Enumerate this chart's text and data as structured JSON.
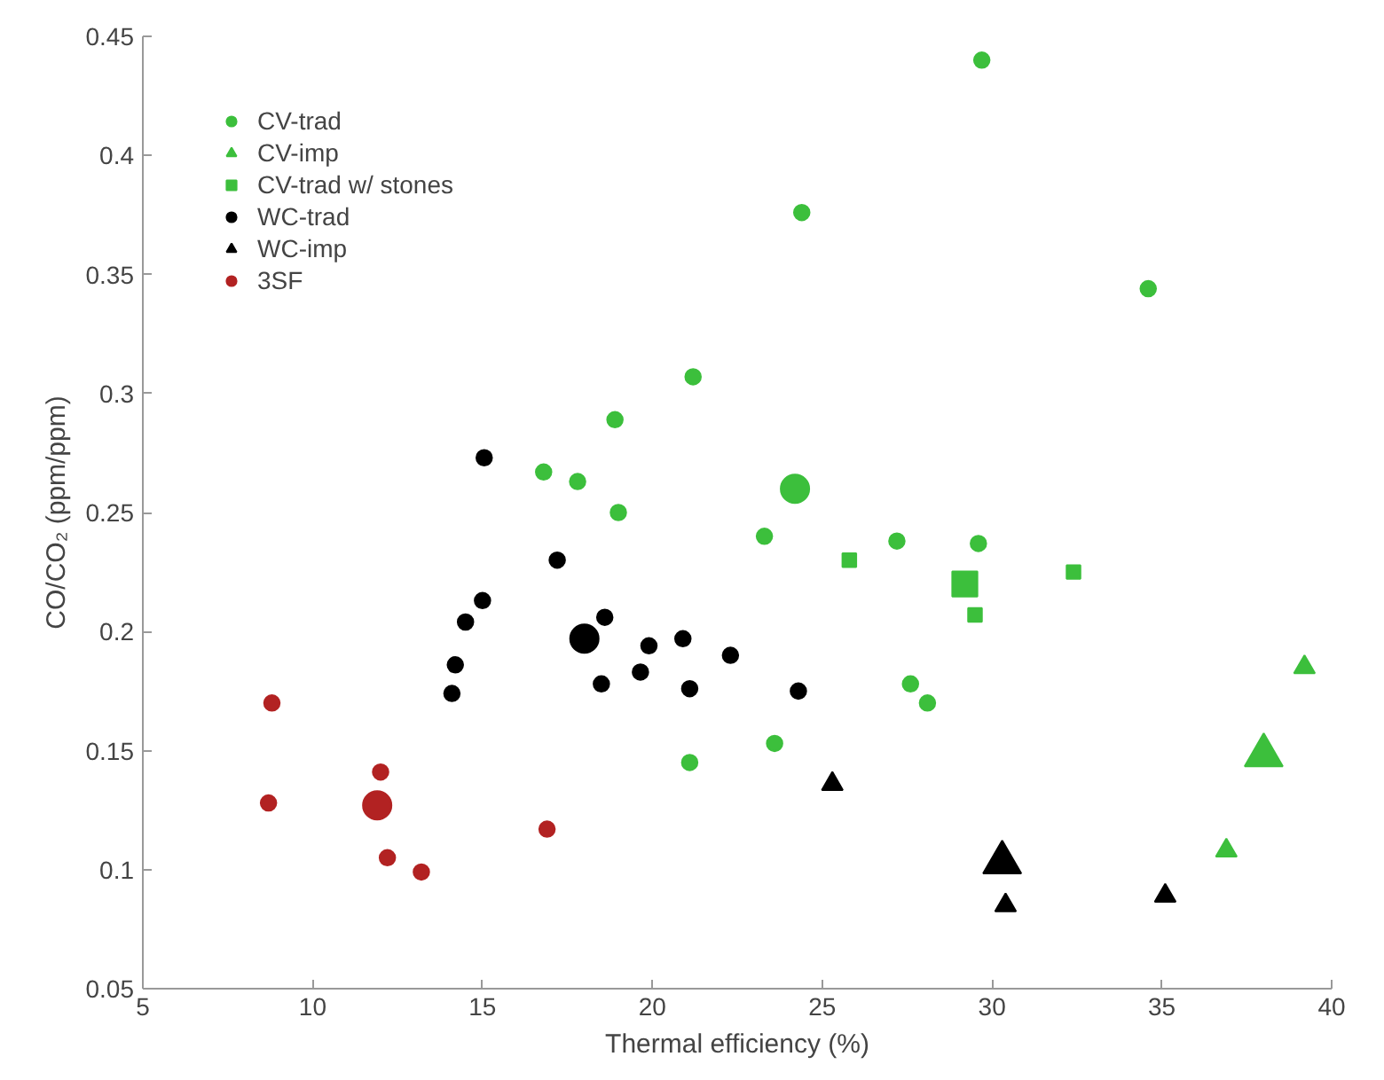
{
  "chart_data": {
    "type": "scatter",
    "xlabel": "Thermal efficiency (%)",
    "ylabel": "CO/CO₂ (ppm/ppm)",
    "xlim": [
      5,
      40
    ],
    "xticks": [
      5,
      10,
      15,
      20,
      25,
      30,
      35,
      40
    ],
    "ylim": [
      0.05,
      0.45
    ],
    "yticks": [
      0.05,
      0.1,
      0.15,
      0.2,
      0.25,
      0.3,
      0.35,
      0.4,
      0.45
    ],
    "grid": false,
    "legend": "top left",
    "series": [
      {
        "name": "CV-trad",
        "color": "#3cbf3c",
        "marker": "circle",
        "x": [
          29.7,
          24.4,
          34.6,
          21.2,
          18.9,
          16.8,
          17.8,
          19.0,
          24.2,
          23.3,
          27.2,
          29.6,
          27.6,
          28.1,
          23.6,
          21.1
        ],
        "values": [
          0.44,
          0.376,
          0.344,
          0.307,
          0.289,
          0.267,
          0.263,
          0.25,
          0.26,
          0.24,
          0.238,
          0.237,
          0.178,
          0.17,
          0.153,
          0.145
        ],
        "sizes": [
          0.3,
          0.3,
          0.3,
          0.3,
          0.3,
          0.3,
          0.3,
          0.3,
          1,
          0.3,
          0.3,
          0.3,
          0.3,
          0.3,
          0.3,
          0.3
        ]
      },
      {
        "name": "CV-imp",
        "color": "#3cbf3c",
        "marker": "triangle",
        "x": [
          39.2,
          38.0,
          36.9
        ],
        "values": [
          0.185,
          0.148,
          0.108
        ],
        "sizes": [
          0.3,
          1,
          0.3
        ]
      },
      {
        "name": "CV-trad w/ stones",
        "color": "#3cbf3c",
        "marker": "square",
        "x": [
          25.8,
          29.2,
          29.5,
          32.4
        ],
        "values": [
          0.23,
          0.22,
          0.207,
          0.225
        ],
        "sizes": [
          0.3,
          1,
          0.3,
          0.3
        ]
      },
      {
        "name": "WC-trad",
        "color": "#000000",
        "marker": "circle",
        "x": [
          15.05,
          14.1,
          14.2,
          14.5,
          15.0,
          17.2,
          18.0,
          18.6,
          18.5,
          19.65,
          19.9,
          20.9,
          21.1,
          22.3,
          24.3
        ],
        "values": [
          0.273,
          0.174,
          0.186,
          0.204,
          0.213,
          0.23,
          0.197,
          0.206,
          0.178,
          0.183,
          0.194,
          0.197,
          0.176,
          0.19,
          0.175
        ],
        "sizes": [
          0.3,
          0.3,
          0.3,
          0.3,
          0.3,
          0.3,
          1,
          0.3,
          0.3,
          0.3,
          0.3,
          0.3,
          0.3,
          0.3,
          0.3
        ]
      },
      {
        "name": "WC-imp",
        "color": "#000000",
        "marker": "triangle",
        "x": [
          25.3,
          30.3,
          30.4,
          35.1
        ],
        "values": [
          0.136,
          0.103,
          0.085,
          0.089
        ],
        "sizes": [
          0.3,
          1,
          0.3,
          0.3
        ]
      },
      {
        "name": "3SF",
        "color": "#b22222",
        "marker": "circle",
        "x": [
          8.8,
          8.7,
          11.9,
          12.0,
          12.2,
          13.2,
          16.9
        ],
        "values": [
          0.17,
          0.128,
          0.127,
          0.141,
          0.105,
          0.099,
          0.117
        ],
        "sizes": [
          0.3,
          0.3,
          1,
          0.3,
          0.3,
          0.3,
          0.3
        ]
      }
    ]
  }
}
